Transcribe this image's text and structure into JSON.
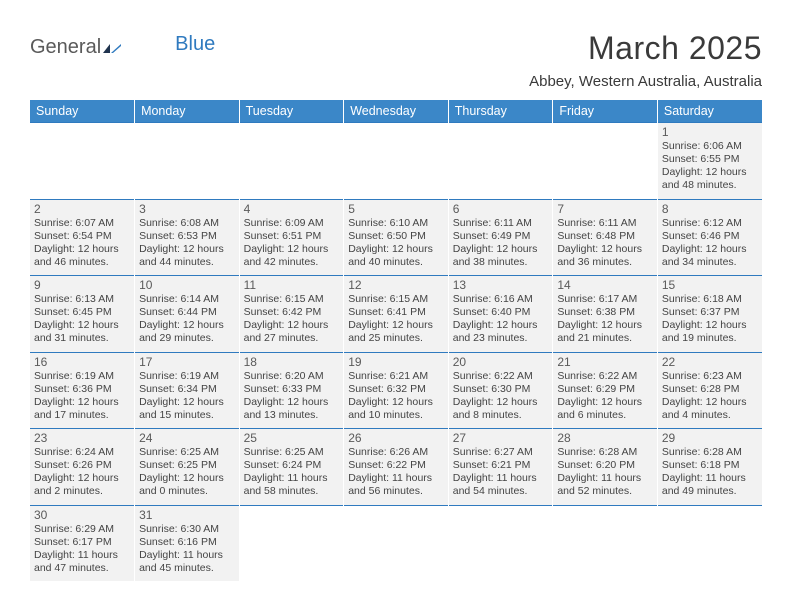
{
  "logo": {
    "general": "General",
    "blue": "Blue"
  },
  "title": "March 2025",
  "subtitle": "Abbey, Western Australia, Australia",
  "colors": {
    "header_bg": "#3b87c8",
    "header_text": "#ffffff",
    "border": "#2f7abf",
    "cell_bg": "#f2f2f2",
    "text": "#444444",
    "accent": "#2f7abf"
  },
  "days_of_week": [
    "Sunday",
    "Monday",
    "Tuesday",
    "Wednesday",
    "Thursday",
    "Friday",
    "Saturday"
  ],
  "weeks": [
    [
      null,
      null,
      null,
      null,
      null,
      null,
      {
        "n": "1",
        "sunrise": "6:06 AM",
        "sunset": "6:55 PM",
        "day_h": "12",
        "day_m": "48"
      }
    ],
    [
      {
        "n": "2",
        "sunrise": "6:07 AM",
        "sunset": "6:54 PM",
        "day_h": "12",
        "day_m": "46"
      },
      {
        "n": "3",
        "sunrise": "6:08 AM",
        "sunset": "6:53 PM",
        "day_h": "12",
        "day_m": "44"
      },
      {
        "n": "4",
        "sunrise": "6:09 AM",
        "sunset": "6:51 PM",
        "day_h": "12",
        "day_m": "42"
      },
      {
        "n": "5",
        "sunrise": "6:10 AM",
        "sunset": "6:50 PM",
        "day_h": "12",
        "day_m": "40"
      },
      {
        "n": "6",
        "sunrise": "6:11 AM",
        "sunset": "6:49 PM",
        "day_h": "12",
        "day_m": "38"
      },
      {
        "n": "7",
        "sunrise": "6:11 AM",
        "sunset": "6:48 PM",
        "day_h": "12",
        "day_m": "36"
      },
      {
        "n": "8",
        "sunrise": "6:12 AM",
        "sunset": "6:46 PM",
        "day_h": "12",
        "day_m": "34"
      }
    ],
    [
      {
        "n": "9",
        "sunrise": "6:13 AM",
        "sunset": "6:45 PM",
        "day_h": "12",
        "day_m": "31"
      },
      {
        "n": "10",
        "sunrise": "6:14 AM",
        "sunset": "6:44 PM",
        "day_h": "12",
        "day_m": "29"
      },
      {
        "n": "11",
        "sunrise": "6:15 AM",
        "sunset": "6:42 PM",
        "day_h": "12",
        "day_m": "27"
      },
      {
        "n": "12",
        "sunrise": "6:15 AM",
        "sunset": "6:41 PM",
        "day_h": "12",
        "day_m": "25"
      },
      {
        "n": "13",
        "sunrise": "6:16 AM",
        "sunset": "6:40 PM",
        "day_h": "12",
        "day_m": "23"
      },
      {
        "n": "14",
        "sunrise": "6:17 AM",
        "sunset": "6:38 PM",
        "day_h": "12",
        "day_m": "21"
      },
      {
        "n": "15",
        "sunrise": "6:18 AM",
        "sunset": "6:37 PM",
        "day_h": "12",
        "day_m": "19"
      }
    ],
    [
      {
        "n": "16",
        "sunrise": "6:19 AM",
        "sunset": "6:36 PM",
        "day_h": "12",
        "day_m": "17"
      },
      {
        "n": "17",
        "sunrise": "6:19 AM",
        "sunset": "6:34 PM",
        "day_h": "12",
        "day_m": "15"
      },
      {
        "n": "18",
        "sunrise": "6:20 AM",
        "sunset": "6:33 PM",
        "day_h": "12",
        "day_m": "13"
      },
      {
        "n": "19",
        "sunrise": "6:21 AM",
        "sunset": "6:32 PM",
        "day_h": "12",
        "day_m": "10"
      },
      {
        "n": "20",
        "sunrise": "6:22 AM",
        "sunset": "6:30 PM",
        "day_h": "12",
        "day_m": "8"
      },
      {
        "n": "21",
        "sunrise": "6:22 AM",
        "sunset": "6:29 PM",
        "day_h": "12",
        "day_m": "6"
      },
      {
        "n": "22",
        "sunrise": "6:23 AM",
        "sunset": "6:28 PM",
        "day_h": "12",
        "day_m": "4"
      }
    ],
    [
      {
        "n": "23",
        "sunrise": "6:24 AM",
        "sunset": "6:26 PM",
        "day_h": "12",
        "day_m": "2"
      },
      {
        "n": "24",
        "sunrise": "6:25 AM",
        "sunset": "6:25 PM",
        "day_h": "12",
        "day_m": "0"
      },
      {
        "n": "25",
        "sunrise": "6:25 AM",
        "sunset": "6:24 PM",
        "day_h": "11",
        "day_m": "58"
      },
      {
        "n": "26",
        "sunrise": "6:26 AM",
        "sunset": "6:22 PM",
        "day_h": "11",
        "day_m": "56"
      },
      {
        "n": "27",
        "sunrise": "6:27 AM",
        "sunset": "6:21 PM",
        "day_h": "11",
        "day_m": "54"
      },
      {
        "n": "28",
        "sunrise": "6:28 AM",
        "sunset": "6:20 PM",
        "day_h": "11",
        "day_m": "52"
      },
      {
        "n": "29",
        "sunrise": "6:28 AM",
        "sunset": "6:18 PM",
        "day_h": "11",
        "day_m": "49"
      }
    ],
    [
      {
        "n": "30",
        "sunrise": "6:29 AM",
        "sunset": "6:17 PM",
        "day_h": "11",
        "day_m": "47"
      },
      {
        "n": "31",
        "sunrise": "6:30 AM",
        "sunset": "6:16 PM",
        "day_h": "11",
        "day_m": "45"
      },
      null,
      null,
      null,
      null,
      null
    ]
  ],
  "labels": {
    "sunrise": "Sunrise: ",
    "sunset": "Sunset: ",
    "daylight_pre": "Daylight: ",
    "hours_word": " hours",
    "and_word": "and ",
    "minutes_word": " minutes."
  }
}
